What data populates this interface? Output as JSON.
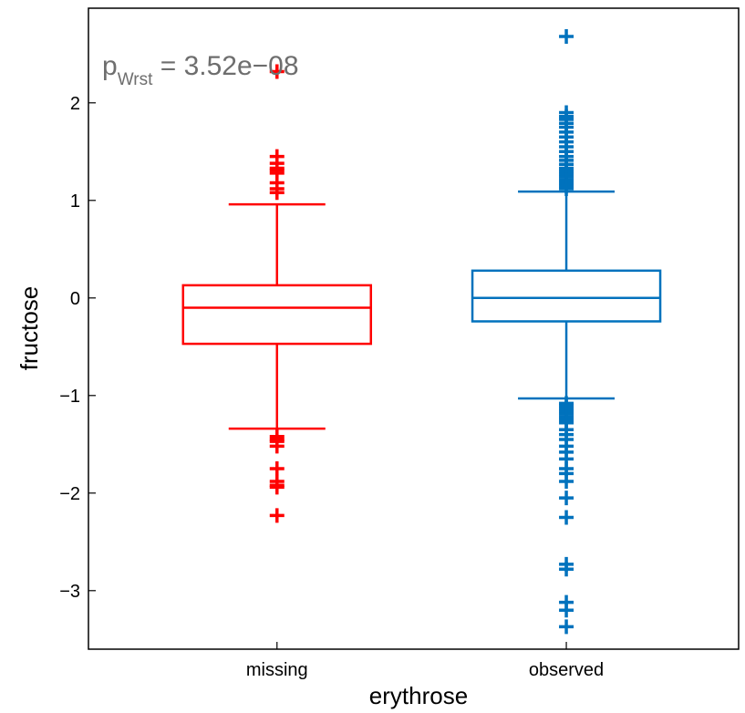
{
  "chart_data": {
    "type": "box",
    "xlabel": "erythrose",
    "ylabel": "fructose",
    "ylim": [
      -3.6,
      2.97
    ],
    "yticks": [
      -3,
      -2,
      -1,
      0,
      1,
      2
    ],
    "ytick_labels": [
      "−3",
      "−2",
      "−1",
      "0",
      "1",
      "2"
    ],
    "categories": [
      "missing",
      "observed"
    ],
    "annotation": {
      "prefix": "p",
      "subscript": "Wrst",
      "value": " = 3.52e−08",
      "placement": "top-left"
    },
    "series": [
      {
        "category": "missing",
        "color": "#ff0000",
        "q1": -0.47,
        "median": -0.1,
        "q3": 0.13,
        "whisker_low": -1.34,
        "whisker_high": 0.96,
        "outliers": [
          2.32,
          1.45,
          1.38,
          1.33,
          1.31,
          1.28,
          1.18,
          1.12,
          1.08,
          -1.42,
          -1.45,
          -1.47,
          -1.52,
          -1.75,
          -1.88,
          -1.92,
          -1.94,
          -2.23
        ]
      },
      {
        "category": "observed",
        "color": "#0072bd",
        "q1": -0.24,
        "median": 0.0,
        "q3": 0.28,
        "whisker_low": -1.03,
        "whisker_high": 1.09,
        "outliers": [
          2.68,
          1.9,
          1.86,
          1.83,
          1.79,
          1.75,
          1.7,
          1.65,
          1.6,
          1.55,
          1.5,
          1.45,
          1.41,
          1.37,
          1.33,
          1.3,
          1.27,
          1.24,
          1.21,
          1.18,
          1.15,
          1.12,
          -1.08,
          -1.1,
          -1.13,
          -1.16,
          -1.19,
          -1.22,
          -1.25,
          -1.28,
          -1.35,
          -1.4,
          -1.45,
          -1.52,
          -1.58,
          -1.65,
          -1.75,
          -1.8,
          -1.88,
          -2.05,
          -2.25,
          -2.73,
          -2.78,
          -3.12,
          -3.2,
          -3.37
        ]
      }
    ]
  }
}
